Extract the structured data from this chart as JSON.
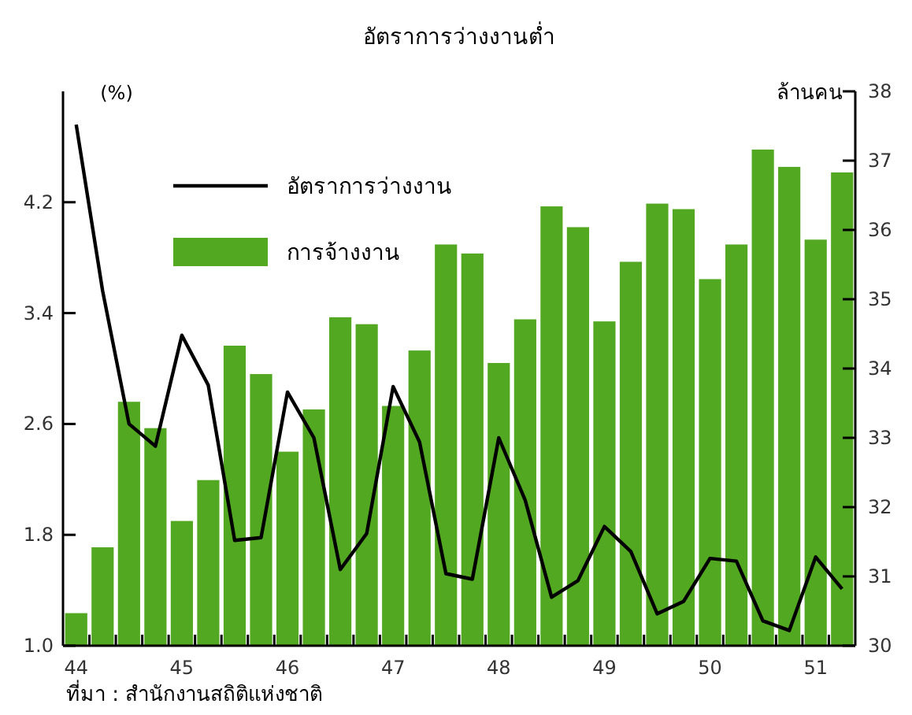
{
  "chart_data": {
    "type": "bar",
    "title": "อัตราการว่างงานต่ำ",
    "ylabel": "(%)",
    "y2label": "ล้านคน",
    "annotations": [
      "ที่มา : สำนักงานสถิติแห่งชาติ"
    ],
    "categories": [
      "44",
      null,
      null,
      null,
      "45",
      null,
      null,
      null,
      "46",
      null,
      null,
      null,
      "47",
      null,
      null,
      null,
      "48",
      null,
      null,
      null,
      "49",
      null,
      null,
      null,
      "50",
      null,
      null,
      null,
      "51",
      null
    ],
    "series": [
      {
        "name": "อัตราการว่างงาน",
        "type": "line",
        "color": "#000000",
        "values": [
          4.76,
          3.56,
          2.6,
          2.44,
          3.24,
          2.88,
          1.76,
          1.78,
          2.83,
          2.5,
          1.55,
          1.81,
          2.87,
          2.47,
          1.52,
          1.48,
          2.5,
          2.05,
          1.35,
          1.47,
          1.86,
          1.68,
          1.23,
          1.32,
          1.63,
          1.61,
          1.18,
          1.11,
          1.64,
          1.41
        ]
      },
      {
        "name": "การจ้างงาน",
        "axis": "y2",
        "color": "#52a820",
        "values": [
          30.47,
          31.42,
          33.52,
          33.14,
          31.8,
          32.39,
          34.33,
          33.92,
          32.8,
          33.41,
          34.74,
          34.64,
          33.46,
          34.26,
          35.79,
          35.66,
          34.08,
          34.71,
          36.34,
          36.04,
          34.68,
          35.54,
          36.38,
          36.3,
          35.29,
          35.79,
          37.16,
          36.91,
          35.86,
          36.83
        ]
      }
    ],
    "ylim": [
      1,
      5
    ],
    "yticks": [
      {
        "value": 1,
        "label": "1.0"
      },
      1.8,
      2.6,
      3.4,
      4.2
    ],
    "y2lim": [
      30,
      38
    ],
    "y2ticks": [
      30,
      31,
      32,
      33,
      34,
      35,
      36,
      37,
      38
    ],
    "legend": "top left"
  }
}
